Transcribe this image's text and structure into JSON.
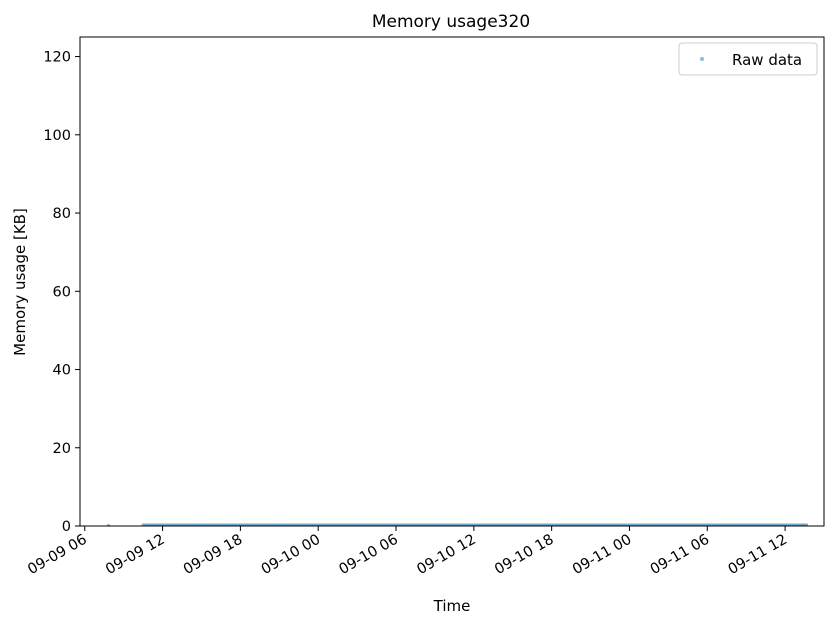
{
  "chart_data": {
    "type": "scatter",
    "title": "Memory usage320",
    "xlabel": "Time",
    "ylabel": "Memory usage [KB]",
    "x_axis": "datetime",
    "xlim": [
      "2023-09-09T05:38",
      "2023-09-11T15:00"
    ],
    "ylim": [
      0,
      125
    ],
    "x_tick_labels": [
      "09-09 06",
      "09-09 12",
      "09-09 18",
      "09-10 00",
      "09-10 06",
      "09-10 12",
      "09-10 18",
      "09-11 00",
      "09-11 06",
      "09-11 12"
    ],
    "y_tick_values": [
      0,
      20,
      40,
      60,
      80,
      100,
      120
    ],
    "y_tick_labels": [
      "0",
      "20",
      "40",
      "60",
      "80",
      "100",
      "120"
    ],
    "grid": false,
    "legend_position": "top-right",
    "series": [
      {
        "name": "Raw data",
        "marker": "point",
        "color": "#1f77b4",
        "x_start": "2023-09-09T10:30",
        "x_end": "2023-09-11T13:45",
        "y_value": 0.3,
        "isolated_points": [
          {
            "x": "2023-09-09T07:50",
            "y": 0.2
          }
        ]
      }
    ]
  }
}
